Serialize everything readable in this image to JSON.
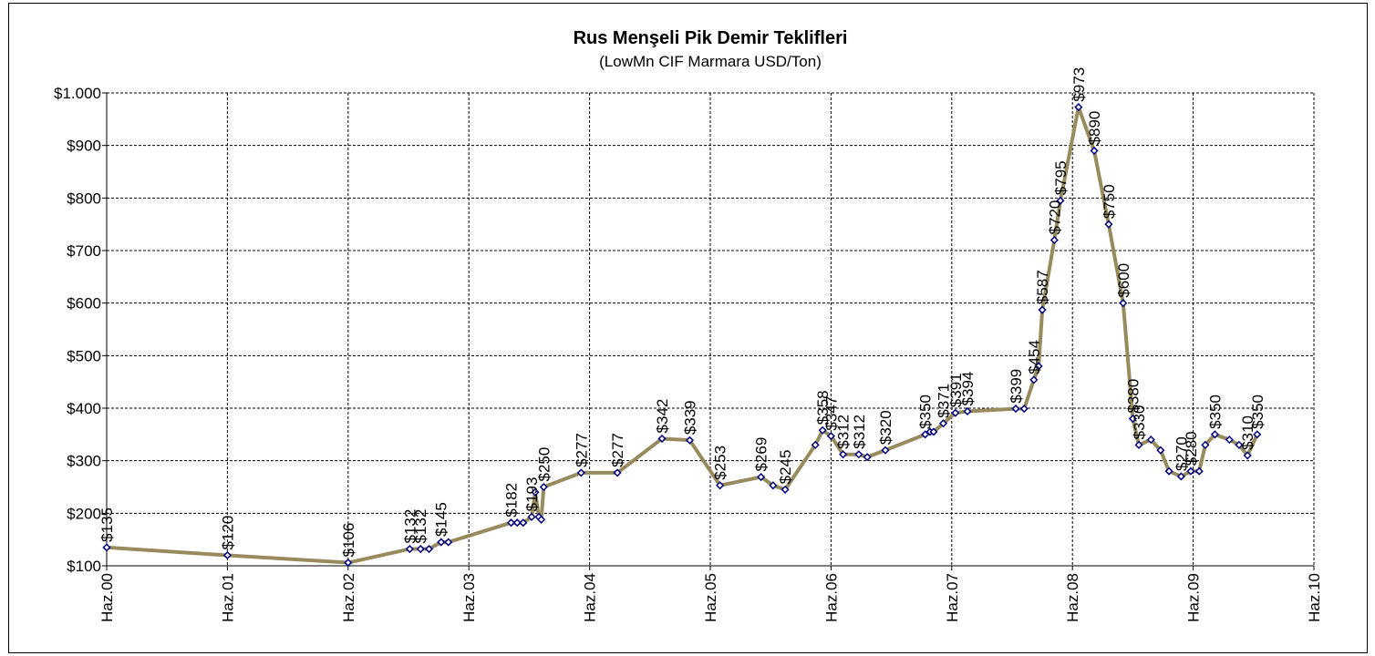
{
  "chart_data": {
    "type": "line",
    "title": "Rus Menşeli Pik Demir Teklifleri",
    "subtitle": "(LowMn CIF Marmara USD/Ton)",
    "xlim": [
      0,
      10
    ],
    "xticks": [
      {
        "value": 0,
        "label": "Haz.00"
      },
      {
        "value": 1,
        "label": "Haz.01"
      },
      {
        "value": 2,
        "label": "Haz.02"
      },
      {
        "value": 3,
        "label": "Haz.03"
      },
      {
        "value": 4,
        "label": "Haz.04"
      },
      {
        "value": 5,
        "label": "Haz.05"
      },
      {
        "value": 6,
        "label": "Haz.06"
      },
      {
        "value": 7,
        "label": "Haz.07"
      },
      {
        "value": 8,
        "label": "Haz.08"
      },
      {
        "value": 9,
        "label": "Haz.09"
      },
      {
        "value": 10,
        "label": "Haz.10"
      }
    ],
    "ylim": [
      100,
      1000
    ],
    "yticks": [
      {
        "value": 100,
        "label": "$100"
      },
      {
        "value": 200,
        "label": "$200"
      },
      {
        "value": 300,
        "label": "$300"
      },
      {
        "value": 400,
        "label": "$400"
      },
      {
        "value": 500,
        "label": "$500"
      },
      {
        "value": 600,
        "label": "$600"
      },
      {
        "value": 700,
        "label": "$700"
      },
      {
        "value": 800,
        "label": "$800"
      },
      {
        "value": 900,
        "label": "$900"
      },
      {
        "value": 1000,
        "label": "$1.000"
      }
    ],
    "grid": true,
    "series": [
      {
        "color": "#978b5e",
        "marker_color": "#000080",
        "x": [
          0,
          1.0,
          2.0,
          2.51,
          2.6,
          2.67,
          2.77,
          2.83,
          3.35,
          3.4,
          3.45,
          3.52,
          3.55,
          3.58,
          3.6,
          3.62,
          3.93,
          4.23,
          4.6,
          4.83,
          5.08,
          5.42,
          5.52,
          5.62,
          5.87,
          5.93,
          6.0,
          6.1,
          6.23,
          6.3,
          6.45,
          6.78,
          6.82,
          6.85,
          6.93,
          7.03,
          7.13,
          7.53,
          7.6,
          7.68,
          7.72,
          7.75,
          7.85,
          7.9,
          8.05,
          8.18,
          8.3,
          8.42,
          8.5,
          8.55,
          8.65,
          8.73,
          8.8,
          8.9,
          8.98,
          9.05,
          9.1,
          9.18,
          9.3,
          9.38,
          9.45,
          9.53
        ],
        "values": [
          135,
          120,
          106,
          132,
          132,
          132,
          145,
          145,
          182,
          182,
          182,
          193,
          240,
          193,
          188,
          250,
          277,
          277,
          342,
          339,
          253,
          269,
          253,
          245,
          330,
          358,
          347,
          312,
          312,
          307,
          320,
          350,
          355,
          355,
          371,
          391,
          394,
          399,
          399,
          454,
          480,
          587,
          720,
          795,
          973,
          890,
          750,
          600,
          380,
          330,
          340,
          320,
          280,
          270,
          280,
          280,
          330,
          350,
          340,
          330,
          310,
          350
        ],
        "value_labels": [
          "$135",
          "$120",
          "$106",
          "$132",
          "$132",
          null,
          "$145",
          null,
          "$182",
          null,
          null,
          "$193",
          null,
          null,
          null,
          "$250",
          "$277",
          "$277",
          "$342",
          "$339",
          "$253",
          "$269",
          null,
          "$245",
          null,
          "$358",
          "$347",
          "$312",
          "$312",
          null,
          "$320",
          "$350",
          null,
          null,
          "$371",
          "$391",
          "$394",
          "$399",
          null,
          "$454",
          null,
          "$587",
          "$720",
          "$795",
          "$973",
          "$890",
          "$750",
          "$600",
          "$380",
          "$330",
          null,
          null,
          null,
          "$270",
          "$280",
          null,
          null,
          "$350",
          null,
          null,
          "$310",
          "$350"
        ]
      }
    ]
  }
}
